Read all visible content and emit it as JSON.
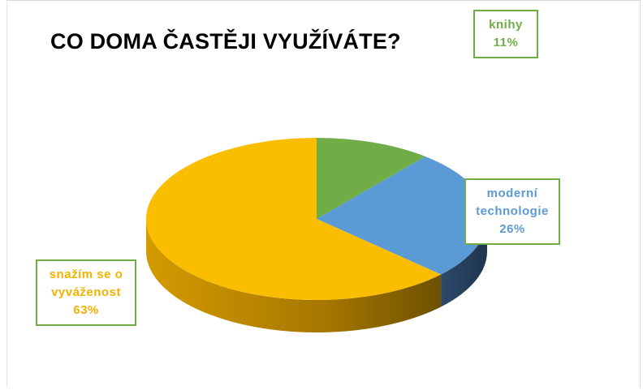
{
  "chart_data": {
    "type": "pie",
    "title": "CO DOMA ČASTĚJI VYUŽÍVÁTE?",
    "categories": [
      "knihy",
      "moderní technologie",
      "snažím se o vyváženost"
    ],
    "values": [
      11,
      26,
      63
    ],
    "value_labels": [
      "11%",
      "26%",
      "63%"
    ],
    "colors": [
      "#70ad47",
      "#5b9bd5",
      "#fbbd00"
    ]
  }
}
